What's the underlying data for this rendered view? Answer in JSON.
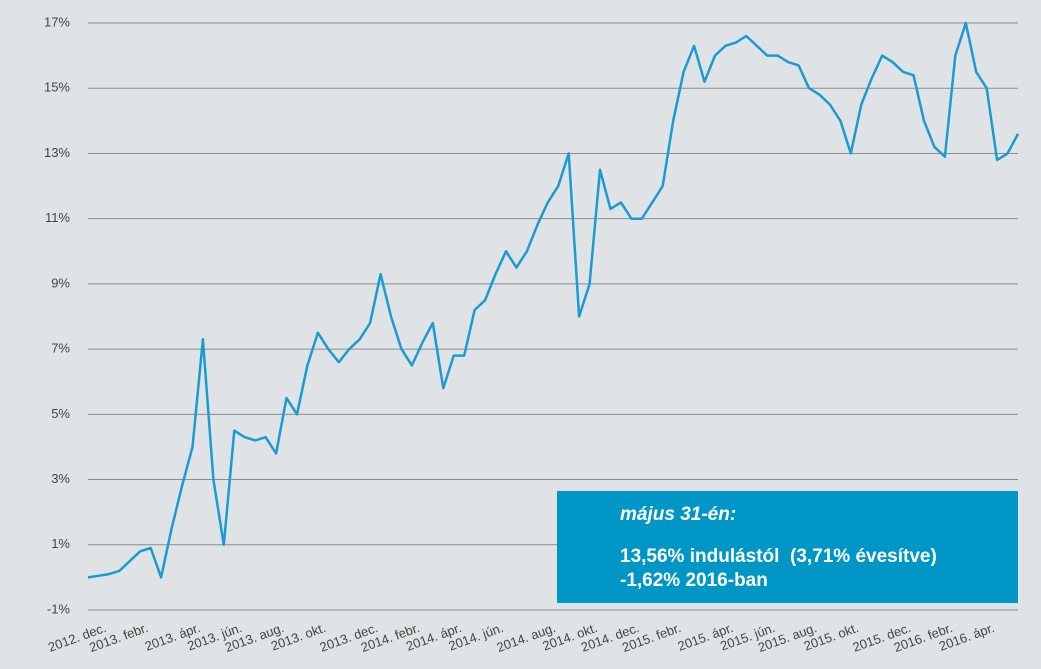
{
  "chart_data": {
    "type": "line",
    "categories": [
      "2012. dec.",
      null,
      null,
      null,
      "2013. febr.",
      null,
      null,
      null,
      null,
      "2013. ápr.",
      null,
      null,
      null,
      "2013. jún.",
      null,
      null,
      null,
      "2013. aug.",
      null,
      null,
      null,
      "2013. okt.",
      null,
      null,
      null,
      null,
      "2013. dec.",
      null,
      null,
      null,
      "2014. febr.",
      null,
      null,
      null,
      "2014. ápr.",
      null,
      null,
      null,
      "2014. jún.",
      null,
      null,
      null,
      null,
      "2014. aug.",
      null,
      null,
      null,
      "2014. okt.",
      null,
      null,
      null,
      "2014. dec.",
      null,
      null,
      null,
      "2015. febr.",
      null,
      null,
      null,
      null,
      "2015. ápr.",
      null,
      null,
      null,
      "2015. jún.",
      null,
      null,
      null,
      "2015. aug.",
      null,
      null,
      null,
      "2015. okt.",
      null,
      null,
      null,
      null,
      "2015. dec.",
      null,
      null,
      null,
      "2016. febr.",
      null,
      null,
      null,
      "2016. ápr.",
      null,
      null,
      null,
      null
    ],
    "series": [
      {
        "color": "#1b9bd1",
        "values": [
          0.0,
          0.05,
          0.1,
          0.2,
          0.5,
          0.8,
          0.9,
          0.0,
          1.5,
          2.8,
          4.0,
          7.3,
          3.0,
          1.0,
          4.5,
          4.3,
          4.2,
          4.3,
          3.8,
          5.5,
          5.0,
          6.5,
          7.5,
          7.0,
          6.6,
          7.0,
          7.3,
          7.8,
          9.3,
          8.0,
          7.0,
          6.5,
          7.2,
          7.8,
          5.8,
          6.8,
          6.8,
          8.2,
          8.5,
          9.3,
          10.0,
          9.5,
          10.0,
          10.8,
          11.5,
          12.0,
          13.0,
          8.0,
          9.0,
          12.5,
          11.3,
          11.5,
          11.0,
          11.0,
          11.5,
          12.0,
          14.0,
          15.5,
          16.3,
          15.2,
          16.0,
          16.3,
          16.4,
          16.6,
          16.3,
          16.0,
          16.0,
          15.8,
          15.7,
          15.0,
          14.8,
          14.5,
          14.0,
          13.0,
          14.5,
          15.3,
          16.0,
          15.8,
          15.5,
          15.4,
          14.0,
          13.2,
          12.9,
          16.0,
          17.0,
          15.5,
          15.0,
          12.8,
          13.0,
          13.6
        ]
      }
    ],
    "ylim": [
      -1,
      17
    ],
    "yticks": [
      {
        "value": -1,
        "label": "-1%"
      },
      {
        "value": 1,
        "label": "1%"
      },
      {
        "value": 3,
        "label": "3%"
      },
      {
        "value": 5,
        "label": "5%"
      },
      {
        "value": 7,
        "label": "7%"
      },
      {
        "value": 9,
        "label": "9%"
      },
      {
        "value": 11,
        "label": "11%"
      },
      {
        "value": 13,
        "label": "13%"
      },
      {
        "value": 15,
        "label": "15%"
      },
      {
        "value": 17,
        "label": "17%"
      }
    ],
    "grid": true,
    "annotation": {
      "title": "május 31-én:",
      "lines": [
        "13,56% indulástól  (3,71% évesítve)",
        "-1,62% 2016-ban"
      ]
    }
  }
}
